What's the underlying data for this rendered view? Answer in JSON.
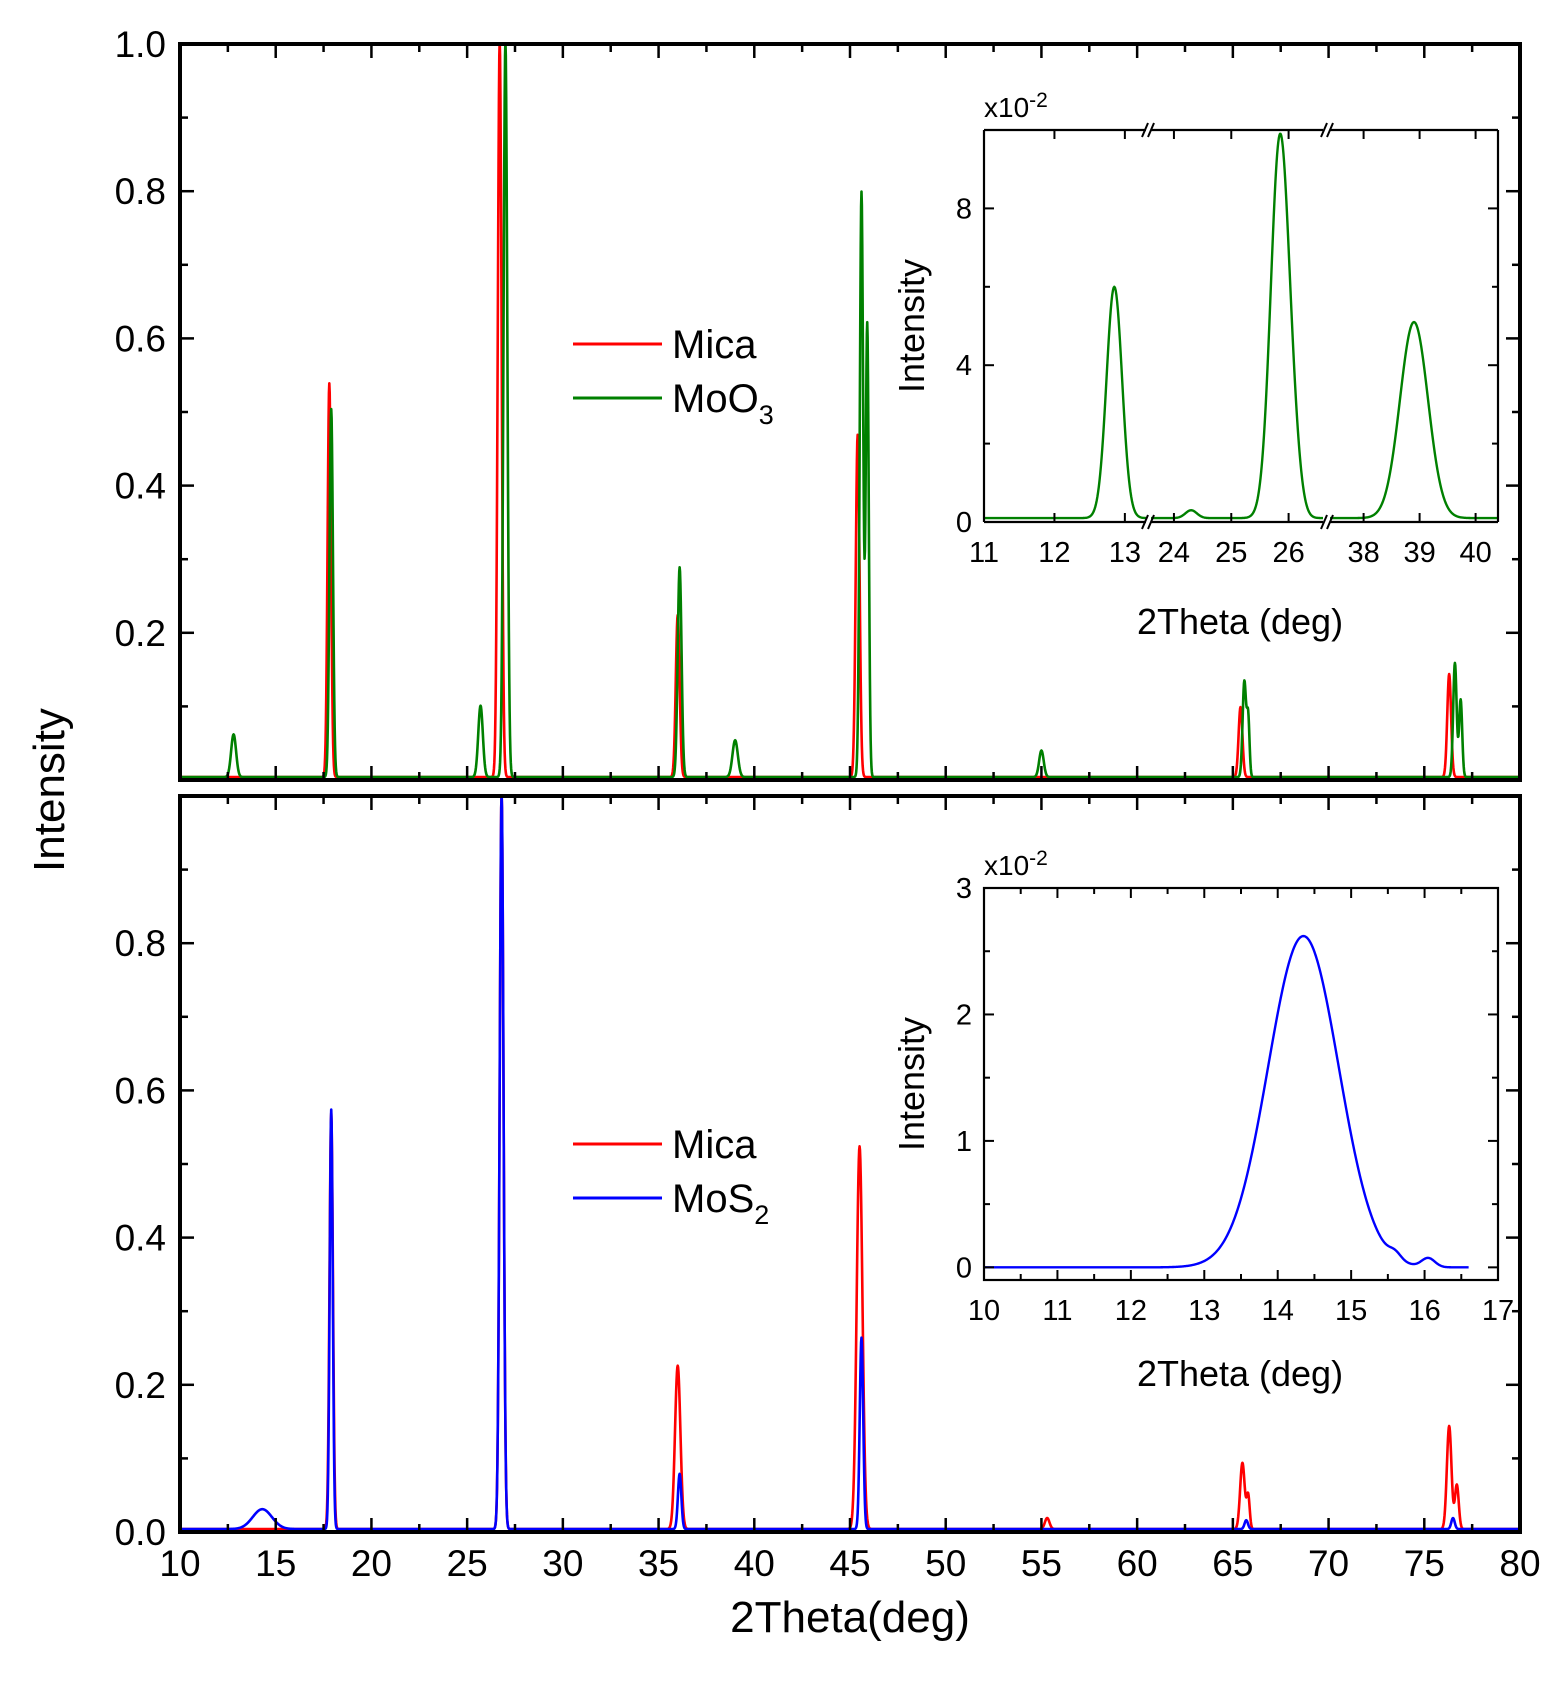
{
  "chart_data": [
    {
      "id": "top",
      "type": "line",
      "panel": "top",
      "xlabel": "2Theta(deg)",
      "ylabel": "Intensity",
      "xlim": [
        10,
        80
      ],
      "ylim": [
        0,
        1.0
      ],
      "yticks": [
        0.2,
        0.4,
        0.6,
        0.8,
        1.0
      ],
      "ytick_labels": [
        "0.2",
        "0.4",
        "0.6",
        "0.8",
        "1.0"
      ],
      "legend": {
        "position": "center",
        "entries": [
          {
            "label": "Mica",
            "sub": "",
            "color": "#ff0000"
          },
          {
            "label": "MoO",
            "sub": "3",
            "color": "#008000"
          }
        ]
      },
      "series": [
        {
          "name": "Mica",
          "color": "#ff0000",
          "baseline": 0.004,
          "peaks": [
            [
              17.8,
              0.535,
              0.09
            ],
            [
              26.7,
              1.0,
              0.1
            ],
            [
              36.0,
              0.22,
              0.1
            ],
            [
              45.4,
              0.465,
              0.1
            ],
            [
              65.4,
              0.095,
              0.1
            ],
            [
              76.3,
              0.14,
              0.1
            ]
          ]
        },
        {
          "name": "MoO3",
          "color": "#008000",
          "baseline": 0.004,
          "peaks": [
            [
              12.8,
              0.058,
              0.13
            ],
            [
              17.9,
              0.5,
              0.09
            ],
            [
              25.7,
              0.097,
              0.12
            ],
            [
              27.0,
              1.0,
              0.1
            ],
            [
              36.1,
              0.285,
              0.1
            ],
            [
              39.0,
              0.05,
              0.14
            ],
            [
              45.6,
              0.795,
              0.09
            ],
            [
              45.9,
              0.615,
              0.08
            ],
            [
              55.0,
              0.036,
              0.12
            ],
            [
              65.6,
              0.13,
              0.09
            ],
            [
              65.8,
              0.08,
              0.07
            ],
            [
              76.6,
              0.155,
              0.09
            ],
            [
              76.9,
              0.105,
              0.08
            ]
          ]
        }
      ]
    },
    {
      "id": "bottom",
      "type": "line",
      "panel": "bottom",
      "xlabel": "2Theta(deg)",
      "ylabel": "Intensity",
      "xlim": [
        10,
        80
      ],
      "ylim": [
        0,
        1.0
      ],
      "xticks": [
        10,
        15,
        20,
        25,
        30,
        35,
        40,
        45,
        50,
        55,
        60,
        65,
        70,
        75,
        80
      ],
      "xtick_labels": [
        "10",
        "15",
        "20",
        "25",
        "30",
        "35",
        "40",
        "45",
        "50",
        "55",
        "60",
        "65",
        "70",
        "75",
        "80"
      ],
      "yticks": [
        0.0,
        0.2,
        0.4,
        0.6,
        0.8
      ],
      "ytick_labels": [
        "0.0",
        "0.2",
        "0.4",
        "0.6",
        "0.8"
      ],
      "legend": {
        "position": "center",
        "entries": [
          {
            "label": "Mica",
            "sub": "",
            "color": "#ff0000"
          },
          {
            "label": "MoS",
            "sub": "2",
            "color": "#0000ff"
          }
        ]
      },
      "series": [
        {
          "name": "Mica",
          "color": "#ff0000",
          "baseline": 0.004,
          "peaks": [
            [
              17.9,
              0.565,
              0.09
            ],
            [
              26.8,
              1.0,
              0.1
            ],
            [
              36.0,
              0.222,
              0.14
            ],
            [
              45.5,
              0.52,
              0.15
            ],
            [
              55.3,
              0.015,
              0.12
            ],
            [
              65.5,
              0.09,
              0.12
            ],
            [
              65.8,
              0.045,
              0.08
            ],
            [
              76.3,
              0.14,
              0.12
            ],
            [
              76.7,
              0.06,
              0.1
            ]
          ]
        },
        {
          "name": "MoS2",
          "color": "#0000ff",
          "baseline": 0.004,
          "peaks": [
            [
              14.3,
              0.027,
              0.5
            ],
            [
              17.9,
              0.57,
              0.08
            ],
            [
              26.8,
              1.0,
              0.1
            ],
            [
              36.1,
              0.075,
              0.09
            ],
            [
              45.6,
              0.26,
              0.09
            ],
            [
              65.7,
              0.012,
              0.09
            ],
            [
              76.5,
              0.015,
              0.09
            ]
          ]
        }
      ]
    },
    {
      "id": "inset_top",
      "type": "line",
      "xlabel": "2Theta (deg)",
      "ylabel": "Intensity",
      "scale_label": "x10",
      "scale_exp": "-2",
      "ylim": [
        0,
        10
      ],
      "yticks": [
        0,
        4,
        8
      ],
      "ytick_labels": [
        "0",
        "4",
        "8"
      ],
      "broken_axis": true,
      "segments": [
        {
          "xlim": [
            11,
            13.3
          ],
          "xticks": [
            11,
            12,
            13
          ],
          "xtick_labels": [
            "11",
            "12",
            "13"
          ]
        },
        {
          "xlim": [
            23.6,
            26.6
          ],
          "xticks": [
            24,
            25,
            26
          ],
          "xtick_labels": [
            "24",
            "25",
            "26"
          ]
        },
        {
          "xlim": [
            37.4,
            40.4
          ],
          "xticks": [
            38,
            39,
            40
          ],
          "xtick_labels": [
            "38",
            "39",
            "40"
          ]
        }
      ],
      "series": [
        {
          "name": "MoO3",
          "color": "#008000",
          "baseline": 0.1,
          "segment_peaks": [
            [
              [
                12.85,
                5.9,
                0.11
              ]
            ],
            [
              [
                24.3,
                0.2,
                0.1
              ],
              [
                25.85,
                9.7,
                0.16
              ],
              [
                26.1,
                0.9,
                0.12
              ]
            ],
            [
              [
                38.9,
                5.0,
                0.25
              ]
            ]
          ]
        }
      ]
    },
    {
      "id": "inset_bottom",
      "type": "line",
      "xlabel": "2Theta (deg)",
      "ylabel": "Intensity",
      "scale_label": "x10",
      "scale_exp": "-2",
      "xlim": [
        10,
        17
      ],
      "ylim": [
        -0.1,
        3
      ],
      "xticks": [
        10,
        11,
        12,
        13,
        14,
        15,
        16,
        17
      ],
      "xtick_labels": [
        "10",
        "11",
        "12",
        "13",
        "14",
        "15",
        "16",
        "17"
      ],
      "yticks": [
        0,
        1,
        2,
        3
      ],
      "ytick_labels": [
        "0",
        "1",
        "2",
        "3"
      ],
      "series": [
        {
          "name": "MoS2",
          "color": "#0000ff",
          "baseline": 0.0,
          "x_range": [
            10,
            16.6
          ],
          "peaks": [
            [
              14.35,
              2.62,
              0.48
            ],
            [
              15.6,
              0.05,
              0.08
            ],
            [
              16.05,
              0.07,
              0.09
            ]
          ]
        }
      ]
    }
  ]
}
